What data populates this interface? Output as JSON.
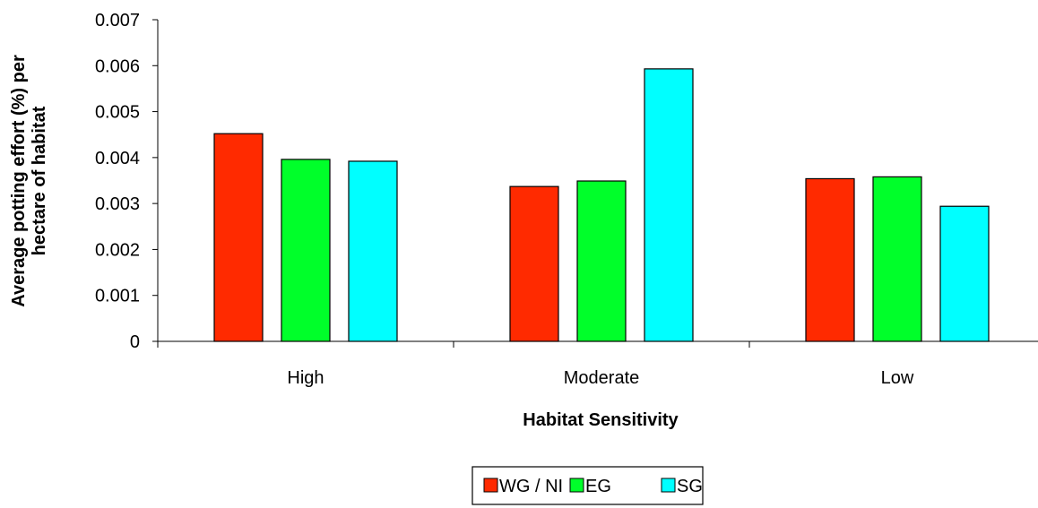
{
  "chart_data": {
    "type": "bar",
    "categories": [
      "High",
      "Moderate",
      "Low"
    ],
    "series": [
      {
        "name": "WG / NI",
        "values": [
          0.00452,
          0.00337,
          0.00354
        ],
        "color": "#ff2a00"
      },
      {
        "name": "EG",
        "values": [
          0.00396,
          0.00349,
          0.00358
        ],
        "color": "#00ff2a"
      },
      {
        "name": "SG",
        "values": [
          0.00392,
          0.00593,
          0.00294
        ],
        "color": "#00ffff"
      }
    ],
    "xlabel": "Habitat Sensitivity",
    "ylabel_lines": [
      "Average potting effort (%) per",
      "hectare of habitat"
    ],
    "ylim": [
      0,
      0.007
    ],
    "yticks": [
      "0",
      "0.001",
      "0.002",
      "0.003",
      "0.004",
      "0.005",
      "0.006",
      "0.007"
    ],
    "grid": false,
    "legend_position": "bottom-center"
  }
}
